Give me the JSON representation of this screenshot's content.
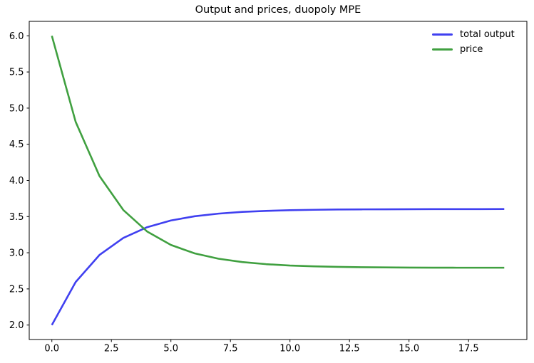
{
  "chart_data": {
    "type": "line",
    "title": "Output and prices, duopoly MPE",
    "xlabel": "",
    "ylabel": "",
    "x": [
      0,
      1,
      2,
      3,
      4,
      5,
      6,
      7,
      8,
      9,
      10,
      11,
      12,
      13,
      14,
      15,
      16,
      17,
      18,
      19
    ],
    "series": [
      {
        "name": "total output",
        "color": "#4040f0",
        "values": [
          2.0,
          2.595,
          2.969,
          3.205,
          3.353,
          3.446,
          3.505,
          3.541,
          3.565,
          3.579,
          3.588,
          3.594,
          3.598,
          3.6,
          3.601,
          3.602,
          3.603,
          3.603,
          3.603,
          3.604
        ]
      },
      {
        "name": "price",
        "color": "#40a040",
        "values": [
          6.0,
          4.81,
          4.061,
          3.591,
          3.294,
          3.108,
          2.991,
          2.917,
          2.871,
          2.842,
          2.823,
          2.812,
          2.805,
          2.8,
          2.797,
          2.795,
          2.794,
          2.793,
          2.793,
          2.793
        ]
      }
    ],
    "xticks": [
      0.0,
      2.5,
      5.0,
      7.5,
      10.0,
      12.5,
      15.0,
      17.5
    ],
    "xtick_labels": [
      "0.0",
      "2.5",
      "5.0",
      "7.5",
      "10.0",
      "12.5",
      "15.0",
      "17.5"
    ],
    "yticks": [
      2.0,
      2.5,
      3.0,
      3.5,
      4.0,
      4.5,
      5.0,
      5.5,
      6.0
    ],
    "ytick_labels": [
      "2.0",
      "2.5",
      "3.0",
      "3.5",
      "4.0",
      "4.5",
      "5.0",
      "5.5",
      "6.0"
    ],
    "xlim": [
      -0.95,
      19.95
    ],
    "ylim": [
      1.8,
      6.2
    ],
    "grid": false,
    "legend_position": "upper right",
    "spine_color": "#000000",
    "background": "#ffffff"
  }
}
